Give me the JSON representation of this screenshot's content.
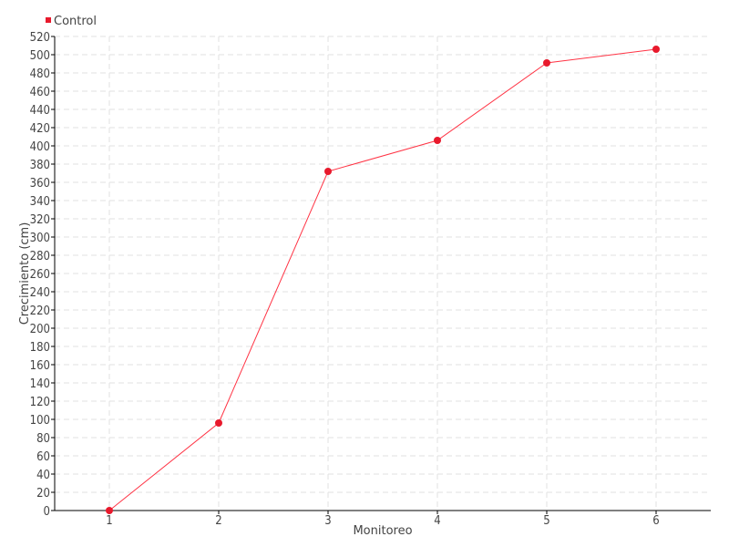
{
  "chart_data": {
    "type": "line",
    "title": "",
    "xlabel": "Monitoreo",
    "ylabel": "Crecimiento (cm)",
    "categories": [
      "1",
      "2",
      "3",
      "4",
      "5",
      "6"
    ],
    "series": [
      {
        "name": "Control",
        "values": [
          0,
          96,
          372,
          406,
          491,
          506
        ],
        "color": "#e8192c"
      }
    ],
    "ylim": [
      0,
      520
    ],
    "ytick_step": 20,
    "grid": true,
    "legend": "top-left"
  }
}
